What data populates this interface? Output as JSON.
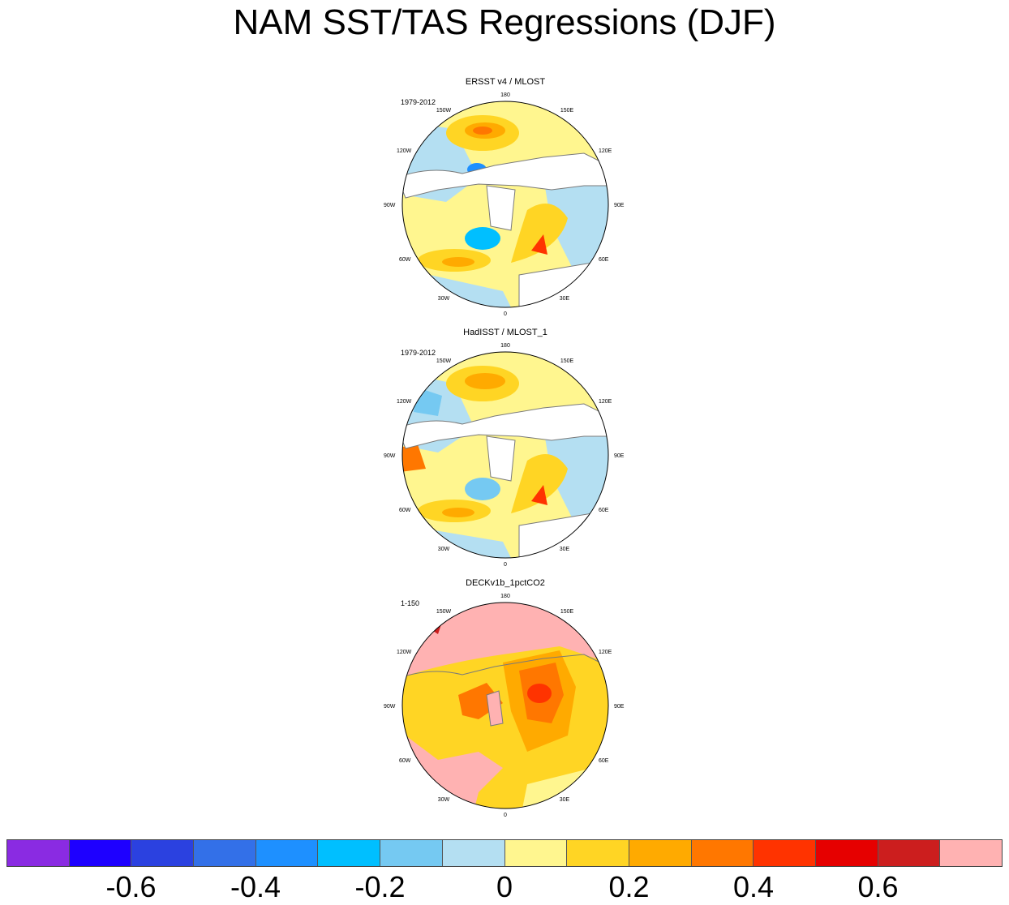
{
  "title": "NAM SST/TAS Regressions (DJF)",
  "panels": [
    {
      "title": "ERSST v4 / MLOST",
      "period": "1979-2012",
      "style": "obs1"
    },
    {
      "title": "HadISST / MLOST_1",
      "period": "1979-2012",
      "style": "obs2"
    },
    {
      "title": "DECKv1b_1pctCO2",
      "period": "1-150",
      "style": "model"
    }
  ],
  "longitude_labels": {
    "top": "180",
    "upper_left": "150W",
    "upper_right": "150E",
    "mid_left_high": "120W",
    "mid_right_high": "120E",
    "left": "90W",
    "right": "90E",
    "mid_left_low": "60W",
    "mid_right_low": "60E",
    "lower_left": "30W",
    "lower_right": "30E",
    "bottom": "0"
  },
  "colorbar": {
    "colors": [
      "#8a2be2",
      "#1e00ff",
      "#2b41e0",
      "#3370e8",
      "#1e90ff",
      "#00bfff",
      "#75c9f2",
      "#b4dff2",
      "#fff68f",
      "#ffd524",
      "#ffaa00",
      "#ff7700",
      "#ff3300",
      "#e60000",
      "#cc1e1e",
      "#ffb2b2"
    ],
    "labels": [
      "-0.6",
      "-0.4",
      "-0.2",
      "0",
      "0.2",
      "0.4",
      "0.6"
    ],
    "label_boundaries": [
      2,
      4,
      6,
      8,
      10,
      12,
      14
    ]
  },
  "colors": {
    "land_outline": "#7a7a7a",
    "land_fill": "#ffffff"
  }
}
